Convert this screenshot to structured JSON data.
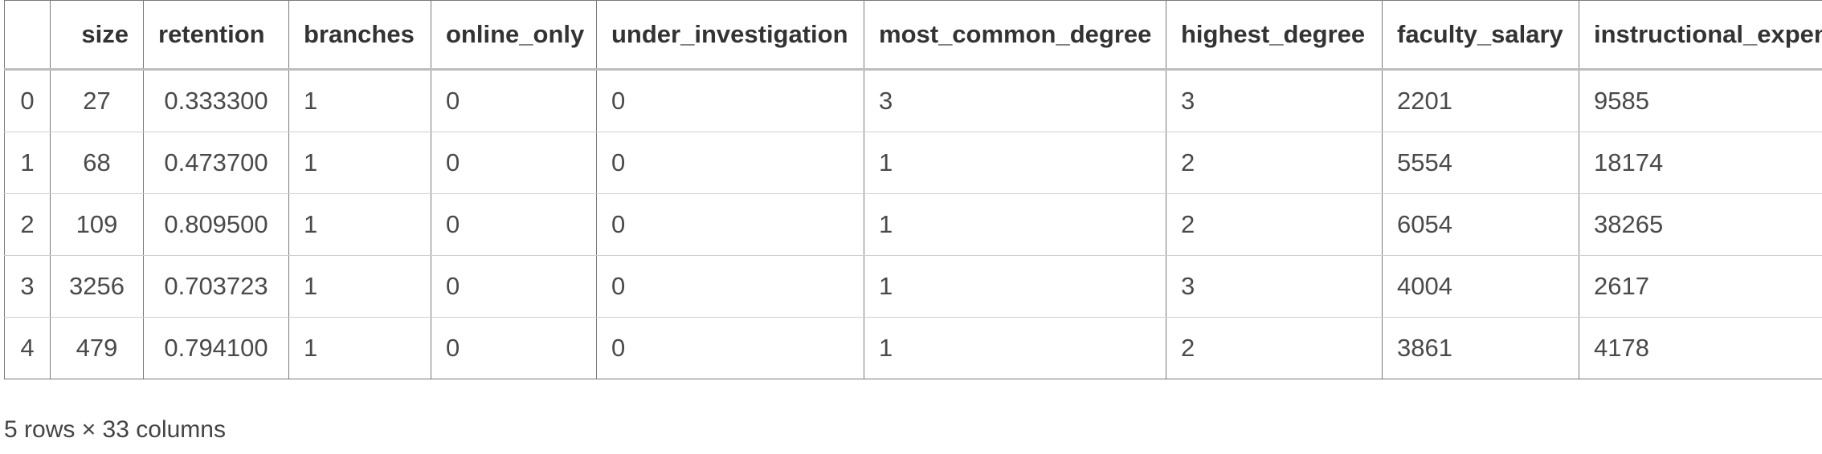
{
  "table": {
    "index_header": "",
    "columns": [
      "size",
      "retention",
      "branches",
      "online_only",
      "under_investigation",
      "most_common_degree",
      "highest_degree",
      "faculty_salary",
      "instructional_expenditure"
    ],
    "rows": [
      {
        "index": "0",
        "cells": [
          "27",
          "0.333300",
          "1",
          "0",
          "0",
          "3",
          "3",
          "2201",
          "9585"
        ]
      },
      {
        "index": "1",
        "cells": [
          "68",
          "0.473700",
          "1",
          "0",
          "0",
          "1",
          "2",
          "5554",
          "18174"
        ]
      },
      {
        "index": "2",
        "cells": [
          "109",
          "0.809500",
          "1",
          "0",
          "0",
          "1",
          "2",
          "6054",
          "38265"
        ]
      },
      {
        "index": "3",
        "cells": [
          "3256",
          "0.703723",
          "1",
          "0",
          "0",
          "1",
          "3",
          "4004",
          "2617"
        ]
      },
      {
        "index": "4",
        "cells": [
          "479",
          "0.794100",
          "1",
          "0",
          "0",
          "1",
          "2",
          "3861",
          "4178"
        ]
      }
    ]
  },
  "shape_text": "5 rows × 33 columns"
}
